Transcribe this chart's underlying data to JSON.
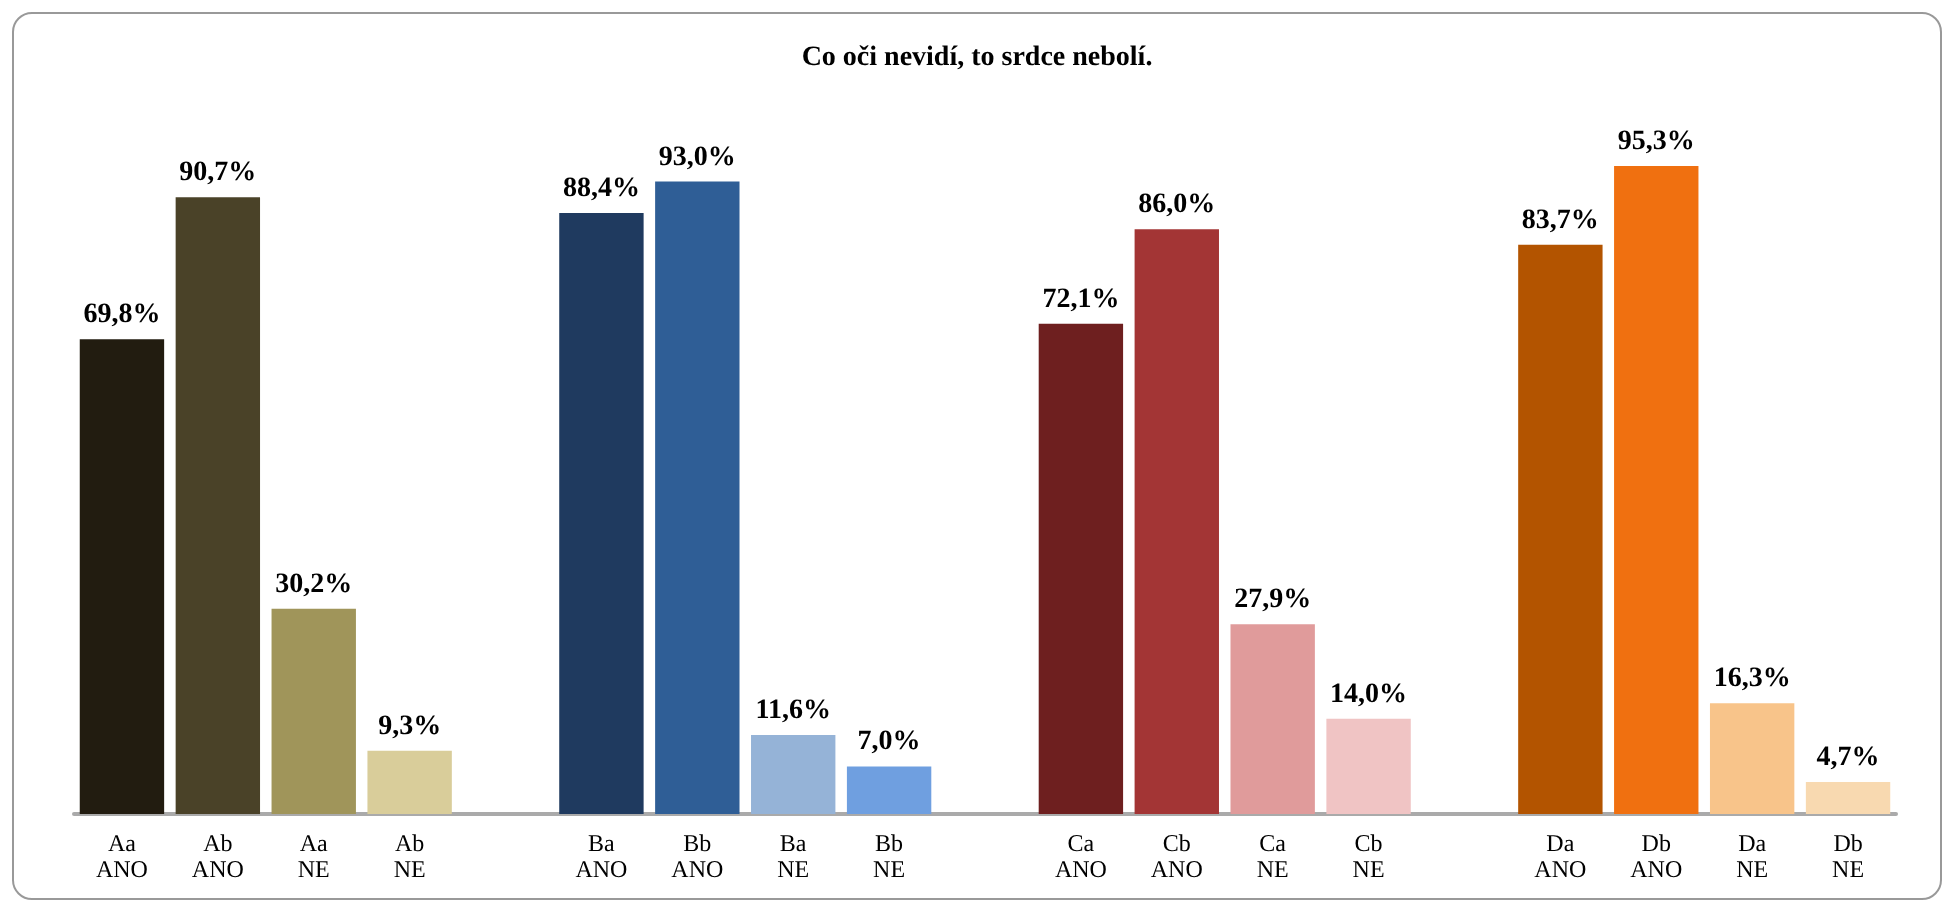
{
  "chart_data": {
    "type": "bar",
    "title": "Co oči nevidí, to srdce nebolí.",
    "categories": [
      "Aa ANO",
      "Ab ANO",
      "Aa NE",
      "Ab NE",
      null,
      "Ba ANO",
      "Bb ANO",
      "Ba NE",
      "Bb NE",
      null,
      "Ca ANO",
      "Cb ANO",
      "Ca NE",
      "Cb NE",
      null,
      "Da ANO",
      "Db ANO",
      "Da NE",
      "Db NE"
    ],
    "values": [
      69.8,
      90.7,
      30.2,
      9.3,
      null,
      88.4,
      93.0,
      11.6,
      7.0,
      null,
      72.1,
      86.0,
      27.9,
      14.0,
      null,
      83.7,
      95.3,
      16.3,
      4.7
    ],
    "value_labels": [
      "69,8%",
      "90,7%",
      "30,2%",
      "9,3%",
      null,
      "88,4%",
      "93,0%",
      "11,6%",
      "7,0%",
      null,
      "72,1%",
      "86,0%",
      "27,9%",
      "14,0%",
      null,
      "83,7%",
      "95,3%",
      "16,3%",
      "4,7%"
    ],
    "colors": [
      "#221c10",
      "#4a4228",
      "#a0955a",
      "#d9cd9a",
      null,
      "#1f3a5f",
      "#2f5e96",
      "#95b3d7",
      "#6f9fe0",
      null,
      "#6e1f1f",
      "#a33535",
      "#e09b9b",
      "#f0c4c4",
      null,
      "#b35400",
      "#f07010",
      "#f8c48a",
      "#f8d9b0"
    ]
  }
}
